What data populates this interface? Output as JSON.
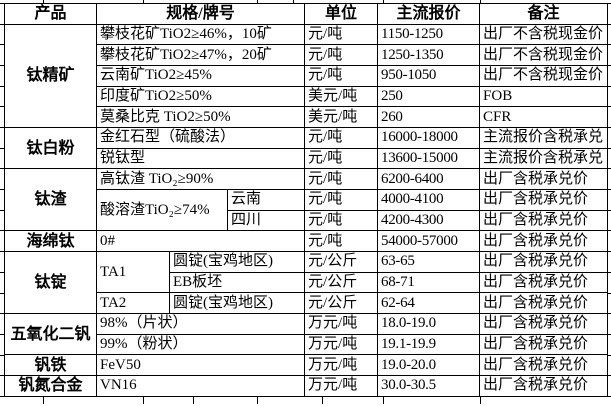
{
  "colors": {
    "background": "#ffffff",
    "border": "#000000",
    "text": "#000000"
  },
  "header": {
    "product": "产品",
    "spec": "规格/牌号",
    "unit": "单位",
    "price": "主流报价",
    "note": "备注"
  },
  "groups": [
    {
      "product": "钛精矿",
      "rows": [
        {
          "spec": "攀枝花矿TiO2≥46%，10矿",
          "unit": "元/吨",
          "price": "1150-1250",
          "note": "出厂不含税现金价"
        },
        {
          "spec": "攀枝花矿TiO2≥47%，20矿",
          "unit": "元/吨",
          "price": "1250-1350",
          "note": "出厂不含税现金价"
        },
        {
          "spec": "云南矿TiO2≥45%",
          "unit": "元/吨",
          "price": "950-1050",
          "note": "出厂不含税现金价"
        },
        {
          "spec": "印度矿TiO2≥50%",
          "unit": "美元/吨",
          "price": "250",
          "note": "FOB"
        },
        {
          "spec": "莫桑比克 TiO2≥50%",
          "unit": "美元/吨",
          "price": "260",
          "note": "CFR"
        }
      ]
    },
    {
      "product": "钛白粉",
      "rows": [
        {
          "spec": "金红石型（硫酸法）",
          "unit": "元/吨",
          "price": "16000-18000",
          "note": "主流报价含税承兑"
        },
        {
          "spec": "锐钛型",
          "unit": "元/吨",
          "price": "13600-15000",
          "note": "主流报价含税承兑"
        }
      ]
    },
    {
      "product": "钛渣",
      "rows": [
        {
          "spec": "高钛渣 TiO₂≥90%",
          "unit": "元/吨",
          "price": "6200-6400",
          "note": "出厂含税承兑价"
        },
        {
          "spec": "酸溶渣TiO₂≥74%",
          "region": "云南",
          "unit": "元/吨",
          "price": "4000-4100",
          "note": "出厂含税承兑价"
        },
        {
          "region": "四川",
          "unit": "元/吨",
          "price": "4200-4300",
          "note": "出厂含税承兑价"
        }
      ]
    },
    {
      "product": "海绵钛",
      "rows": [
        {
          "spec": "0#",
          "unit": "元/吨",
          "price": "54000-57000",
          "note": "出厂含税承兑价"
        }
      ]
    },
    {
      "product": "钛锭",
      "rows": [
        {
          "grade": "TA1",
          "form": "圆锭(宝鸡地区)",
          "unit": "元/公斤",
          "price": "63-65",
          "note": "出厂含税承兑价"
        },
        {
          "form": "EB板坯",
          "unit": "元/公斤",
          "price": "68-71",
          "note": "出厂含税承兑价"
        },
        {
          "grade": "TA2",
          "form": "圆锭(宝鸡地区)",
          "unit": "元/公斤",
          "price": "62-64",
          "note": "出厂含税承兑价"
        }
      ]
    },
    {
      "product": "五氧化二钒",
      "rows": [
        {
          "spec": "98%（片状）",
          "unit": "万元/吨",
          "price": "18.0-19.0",
          "note": "出厂含税承兑价"
        },
        {
          "spec": "99%（粉状）",
          "unit": "万元/吨",
          "price": "19.1-19.9",
          "note": "出厂含税承兑价"
        }
      ]
    },
    {
      "product": "钒铁",
      "rows": [
        {
          "spec": "FeV50",
          "unit": "万元/吨",
          "price": "19.0-20.0",
          "note": "出厂含税承兑价"
        }
      ]
    },
    {
      "product": "钒氮合金",
      "rows": [
        {
          "spec": "VN16",
          "unit": "万元/吨",
          "price": "30.0-30.5",
          "note": "出厂含税承兑价"
        }
      ]
    }
  ],
  "chart_data": {
    "type": "table",
    "title": "",
    "columns": [
      "产品",
      "规格/牌号",
      "单位",
      "主流报价",
      "备注"
    ],
    "rows": [
      [
        "钛精矿",
        "攀枝花矿TiO2≥46%，10矿",
        "元/吨",
        "1150-1250",
        "出厂不含税现金价"
      ],
      [
        "钛精矿",
        "攀枝花矿TiO2≥47%，20矿",
        "元/吨",
        "1250-1350",
        "出厂不含税现金价"
      ],
      [
        "钛精矿",
        "云南矿TiO2≥45%",
        "元/吨",
        "950-1050",
        "出厂不含税现金价"
      ],
      [
        "钛精矿",
        "印度矿TiO2≥50%",
        "美元/吨",
        "250",
        "FOB"
      ],
      [
        "钛精矿",
        "莫桑比克 TiO2≥50%",
        "美元/吨",
        "260",
        "CFR"
      ],
      [
        "钛白粉",
        "金红石型（硫酸法）",
        "元/吨",
        "16000-18000",
        "主流报价含税承兑"
      ],
      [
        "钛白粉",
        "锐钛型",
        "元/吨",
        "13600-15000",
        "主流报价含税承兑"
      ],
      [
        "钛渣",
        "高钛渣 TiO₂≥90%",
        "元/吨",
        "6200-6400",
        "出厂含税承兑价"
      ],
      [
        "钛渣",
        "酸溶渣TiO₂≥74% 云南",
        "元/吨",
        "4000-4100",
        "出厂含税承兑价"
      ],
      [
        "钛渣",
        "酸溶渣TiO₂≥74% 四川",
        "元/吨",
        "4200-4300",
        "出厂含税承兑价"
      ],
      [
        "海绵钛",
        "0#",
        "元/吨",
        "54000-57000",
        "出厂含税承兑价"
      ],
      [
        "钛锭",
        "TA1 圆锭(宝鸡地区)",
        "元/公斤",
        "63-65",
        "出厂含税承兑价"
      ],
      [
        "钛锭",
        "TA1 EB板坯",
        "元/公斤",
        "68-71",
        "出厂含税承兑价"
      ],
      [
        "钛锭",
        "TA2 圆锭(宝鸡地区)",
        "元/公斤",
        "62-64",
        "出厂含税承兑价"
      ],
      [
        "五氧化二钒",
        "98%（片状）",
        "万元/吨",
        "18.0-19.0",
        "出厂含税承兑价"
      ],
      [
        "五氧化二钒",
        "99%（粉状）",
        "万元/吨",
        "19.1-19.9",
        "出厂含税承兑价"
      ],
      [
        "钒铁",
        "FeV50",
        "万元/吨",
        "19.0-20.0",
        "出厂含税承兑价"
      ],
      [
        "钒氮合金",
        "VN16",
        "万元/吨",
        "30.0-30.5",
        "出厂含税承兑价"
      ]
    ]
  }
}
